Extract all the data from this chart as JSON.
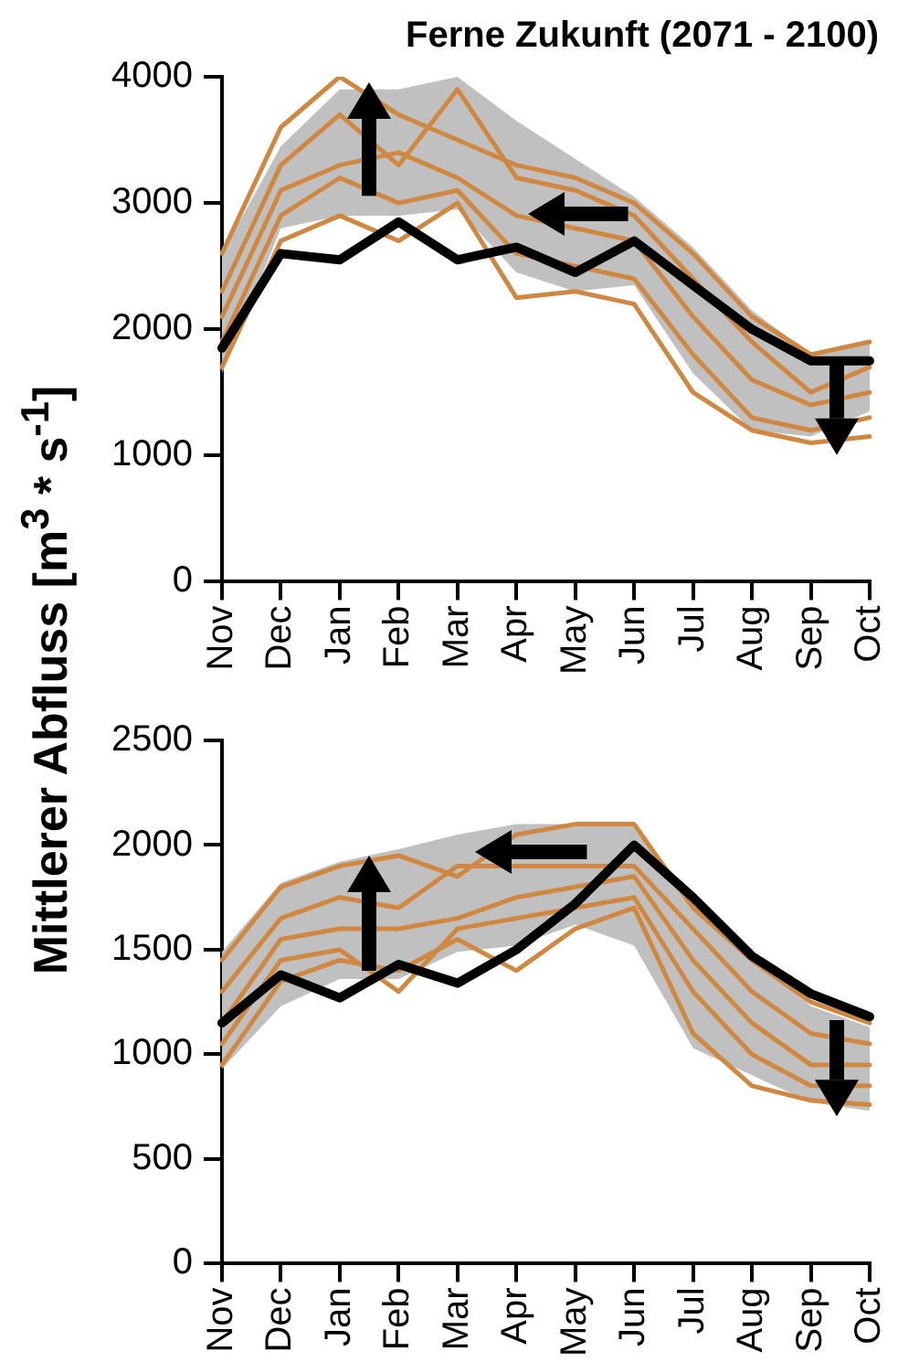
{
  "chart_data": [
    {
      "type": "line",
      "title": "Ferne Zukunft (2071 - 2100)",
      "ylabel": "Mittlerer Abfluss [m$^{3}$ * s$^{-1}$]",
      "categories": [
        "Nov",
        "Dec",
        "Jan",
        "Feb",
        "Mar",
        "Apr",
        "May",
        "Jun",
        "Jul",
        "Aug",
        "Sep",
        "Oct"
      ],
      "ylim": [
        0,
        4000
      ],
      "yticks": [
        0,
        1000,
        2000,
        3000,
        4000
      ],
      "series": [
        {
          "color": "#c0c0c0",
          "values": [
            null,
            null,
            null,
            null,
            null,
            null,
            null,
            null,
            null,
            null,
            null,
            null
          ],
          "lower": [
            1650,
            2800,
            2900,
            2900,
            2950,
            2450,
            2300,
            2350,
            1650,
            1200,
            1150,
            1350
          ],
          "upper": [
            2600,
            3450,
            3900,
            3900,
            4000,
            3650,
            3350,
            3050,
            2650,
            2150,
            1800,
            1900
          ]
        },
        {
          "color": "#d08840",
          "values": [
            2600,
            3600,
            4000,
            3700,
            3500,
            3300,
            3200,
            3000,
            2600,
            2100,
            1800,
            1900
          ]
        },
        {
          "color": "#d08840",
          "values": [
            2300,
            3300,
            3700,
            3300,
            3900,
            3200,
            3100,
            2900,
            2400,
            1900,
            1500,
            1700
          ]
        },
        {
          "color": "#d08840",
          "values": [
            2100,
            3100,
            3300,
            3400,
            3200,
            2900,
            2800,
            2700,
            2100,
            1600,
            1400,
            1500
          ]
        },
        {
          "color": "#d08840",
          "values": [
            1900,
            2900,
            3200,
            3000,
            3100,
            2600,
            2500,
            2400,
            1800,
            1300,
            1200,
            1300
          ]
        },
        {
          "color": "#d08840",
          "values": [
            1700,
            2700,
            2900,
            2700,
            3000,
            2250,
            2300,
            2200,
            1500,
            1200,
            1100,
            1150
          ]
        },
        {
          "color": "#000000",
          "values": [
            1850,
            2600,
            2550,
            2850,
            2550,
            2650,
            2450,
            2700,
            2350,
            2000,
            1750,
            1750
          ]
        }
      ]
    },
    {
      "type": "line",
      "categories": [
        "Nov",
        "Dec",
        "Jan",
        "Feb",
        "Mar",
        "Apr",
        "May",
        "Jun",
        "Jul",
        "Aug",
        "Sep",
        "Oct"
      ],
      "ylim": [
        0,
        2500
      ],
      "yticks": [
        0,
        500,
        1000,
        1500,
        2000,
        2500
      ],
      "series": [
        {
          "color": "#c0c0c0",
          "values": [
            null,
            null,
            null,
            null,
            null,
            null,
            null,
            null,
            null,
            null,
            null,
            null
          ],
          "lower": [
            930,
            1230,
            1360,
            1360,
            1490,
            1520,
            1620,
            1520,
            1030,
            900,
            770,
            730
          ],
          "upper": [
            1490,
            1820,
            1920,
            1980,
            2050,
            2100,
            2100,
            2100,
            1740,
            1490,
            1230,
            1130
          ]
        },
        {
          "color": "#d08840",
          "values": [
            1450,
            1800,
            1900,
            1950,
            1850,
            2050,
            2100,
            2100,
            1700,
            1450,
            1250,
            1150
          ]
        },
        {
          "color": "#d08840",
          "values": [
            1300,
            1650,
            1750,
            1700,
            1900,
            1900,
            1900,
            1900,
            1600,
            1300,
            1100,
            1050
          ]
        },
        {
          "color": "#d08840",
          "values": [
            1150,
            1550,
            1600,
            1600,
            1650,
            1750,
            1800,
            1850,
            1450,
            1150,
            950,
            950
          ]
        },
        {
          "color": "#d08840",
          "values": [
            1050,
            1450,
            1500,
            1300,
            1600,
            1650,
            1700,
            1750,
            1300,
            1000,
            850,
            850
          ]
        },
        {
          "color": "#d08840",
          "values": [
            950,
            1350,
            1450,
            1400,
            1550,
            1400,
            1600,
            1700,
            1100,
            850,
            780,
            760
          ]
        },
        {
          "color": "#000000",
          "values": [
            1150,
            1380,
            1270,
            1430,
            1340,
            1500,
            1720,
            2000,
            1750,
            1470,
            1290,
            1180
          ]
        }
      ]
    }
  ]
}
